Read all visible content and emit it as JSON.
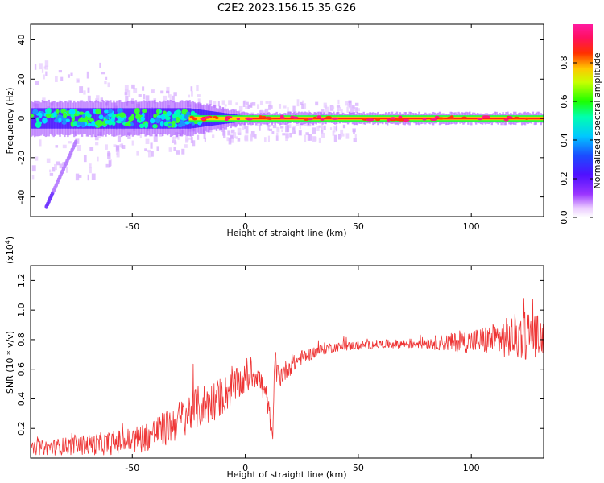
{
  "figure_title": "C2E2.2023.156.15.35.G26",
  "colors": {
    "snr_line": "#ee3333",
    "axis": "#000000",
    "background": "#ffffff",
    "spectrogram_background": "#ffffff"
  },
  "chart_data": [
    {
      "type": "heatmap",
      "title": "C2E2.2023.156.15.35.G26",
      "xlabel": "Height of straight line (km)",
      "ylabel": "Frequency (Hz)",
      "xlim": [
        -95,
        132
      ],
      "ylim": [
        -50,
        48
      ],
      "xticks": [
        -50,
        0,
        50,
        100
      ],
      "yticks": [
        -40,
        -20,
        0,
        20,
        40
      ],
      "ytick_labels": [
        "-40",
        "-20",
        "0",
        "20",
        "40"
      ],
      "xtick_labels": [
        "-50",
        "0",
        "50",
        "100"
      ],
      "grid": false,
      "colorbar": {
        "label": "Normalized spectral amplitude",
        "range": [
          0,
          1
        ],
        "ticks": [
          0.0,
          0.2,
          0.4,
          0.6,
          0.8
        ],
        "tick_labels": [
          "0.0",
          "0.2",
          "0.4",
          "0.6",
          "0.8"
        ],
        "colormap": "rainbow (white-purple-blue-cyan-green-yellow-orange-red-magenta)"
      },
      "features": {
        "band_center_hz": 0,
        "band_halfwidth_hz_low_height": 8,
        "band_halfwidth_hz_high_height": 2,
        "transition_height_km": -25,
        "peak_amplitude_region_km": [
          0,
          132
        ],
        "diagonal_streak": {
          "from": [
            -88,
            -45
          ],
          "to": [
            -75,
            -12
          ]
        }
      }
    },
    {
      "type": "line",
      "title": "",
      "xlabel": "Height of straight line (km)",
      "ylabel": "SNR (10 * v/v)",
      "y_multiplier_label": "(x10",
      "y_multiplier_exp": "4",
      "xlim": [
        -95,
        132
      ],
      "ylim": [
        0,
        1.3
      ],
      "xticks": [
        -50,
        0,
        50,
        100
      ],
      "xtick_labels": [
        "-50",
        "0",
        "50",
        "100"
      ],
      "yticks": [
        0.2,
        0.4,
        0.6,
        0.8,
        1.0,
        1.2
      ],
      "ytick_labels": [
        "0.2",
        "0.4",
        "0.6",
        "0.8",
        "1.0",
        "1.2"
      ],
      "grid": false,
      "series": [
        {
          "x": [
            -95,
            -90,
            -80,
            -70,
            -60,
            -50,
            -45,
            -40,
            -35,
            -30,
            -25,
            -20,
            -15,
            -10,
            -5,
            0,
            5,
            10,
            12,
            13,
            15,
            20,
            25,
            30,
            35,
            40,
            50,
            60,
            70,
            80,
            90,
            100,
            110,
            120,
            125,
            132
          ],
          "y": [
            0.06,
            0.07,
            0.08,
            0.09,
            0.1,
            0.12,
            0.14,
            0.17,
            0.2,
            0.25,
            0.31,
            0.35,
            0.38,
            0.42,
            0.48,
            0.53,
            0.58,
            0.38,
            0.12,
            0.62,
            0.55,
            0.62,
            0.68,
            0.71,
            0.74,
            0.75,
            0.76,
            0.77,
            0.77,
            0.78,
            0.78,
            0.79,
            0.8,
            0.82,
            0.84,
            0.82
          ],
          "noise_amplitude": [
            0.04,
            0.05,
            0.06,
            0.07,
            0.08,
            0.09,
            0.1,
            0.11,
            0.12,
            0.13,
            0.14,
            0.15,
            0.14,
            0.13,
            0.12,
            0.1,
            0.1,
            0.09,
            0.05,
            0.12,
            0.08,
            0.06,
            0.05,
            0.04,
            0.04,
            0.03,
            0.03,
            0.03,
            0.03,
            0.04,
            0.06,
            0.08,
            0.11,
            0.16,
            0.18,
            0.12
          ]
        }
      ]
    }
  ]
}
